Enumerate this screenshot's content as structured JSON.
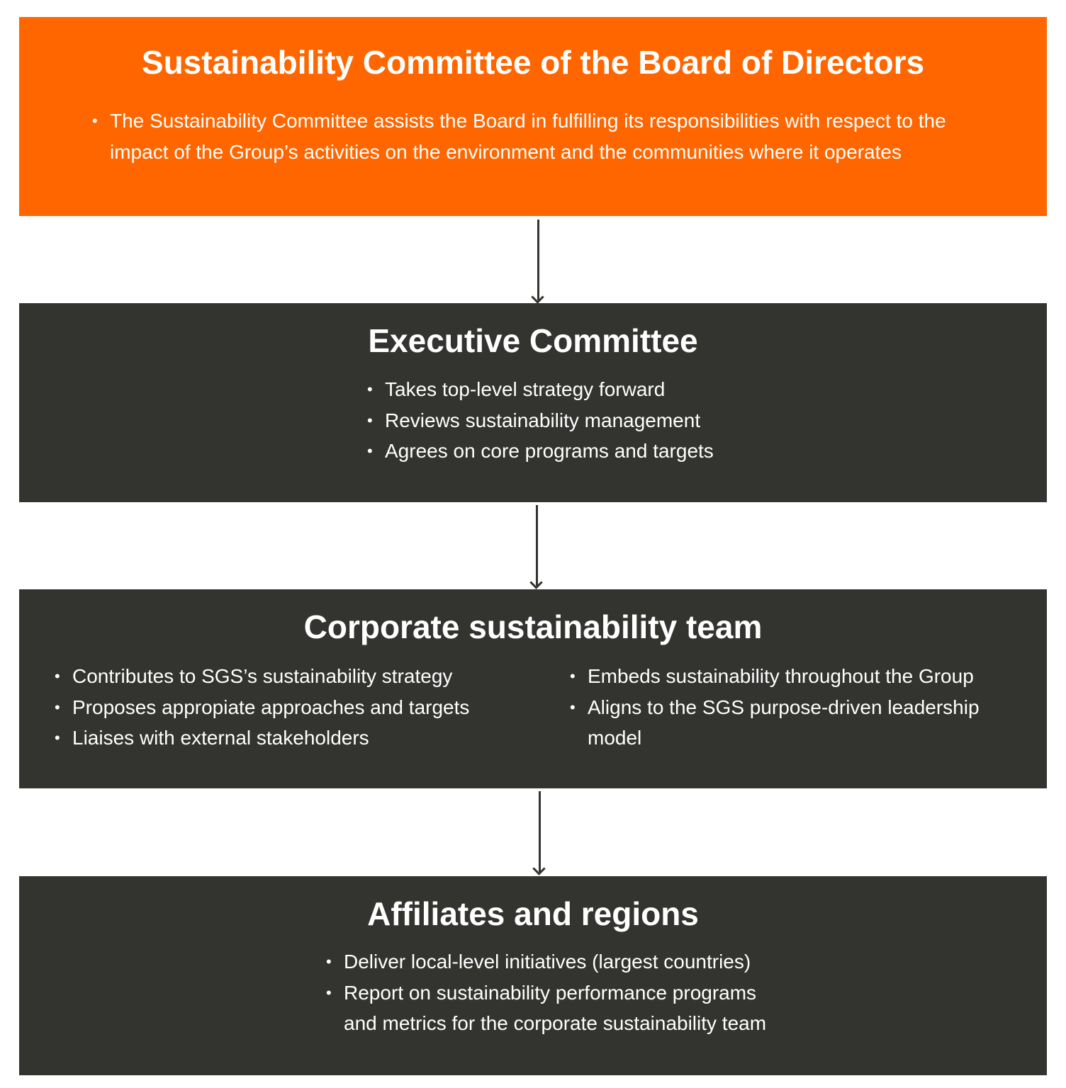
{
  "colors": {
    "board": "#FF6600",
    "dark": "#333330",
    "text": "#FFFFFF"
  },
  "board": {
    "title": "Sustainability Committee of the Board of Directors",
    "bullets": [
      "The Sustainability Committee assists the Board in fulfilling its responsibilities with respect to the impact of the Group’s activities on the environment and the communities where it operates"
    ]
  },
  "executive": {
    "title": "Executive Committee",
    "bullets": [
      "Takes top-level strategy forward",
      "Reviews sustainability management",
      "Agrees on core programs and targets"
    ]
  },
  "corporate": {
    "title": "Corporate sustainability team",
    "left": [
      "Contributes to SGS’s sustainability strategy",
      "Proposes appropiate approaches and targets",
      "Liaises with external stakeholders"
    ],
    "right": [
      "Embeds sustainability throughout the Group",
      "Aligns to the SGS purpose-driven leadership model"
    ]
  },
  "affiliates": {
    "title": "Affiliates and regions",
    "bullets": [
      "Deliver local-level initiatives (largest countries)",
      "Report on sustainability performance programs and metrics for the corporate sustainability team"
    ]
  }
}
